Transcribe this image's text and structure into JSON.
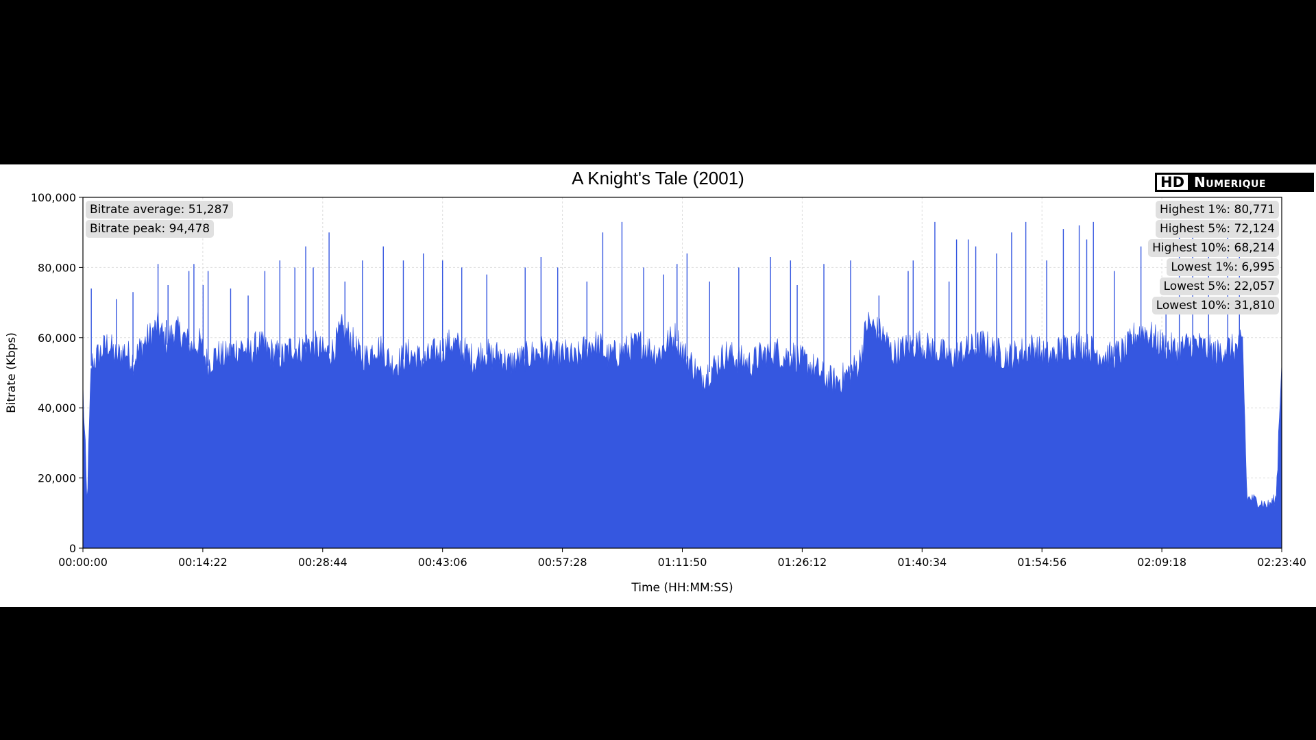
{
  "chart_data": {
    "type": "area",
    "title": "A Knight's Tale (2001)",
    "xlabel": "Time (HH:MM:SS)",
    "ylabel": "Bitrate (Kbps)",
    "ylim": [
      0,
      100000
    ],
    "x_tick_labels": [
      "00:00:00",
      "00:14:22",
      "00:28:44",
      "00:43:06",
      "00:57:28",
      "01:11:50",
      "01:26:12",
      "01:40:34",
      "01:54:56",
      "02:09:18",
      "02:23:40"
    ],
    "y_tick_labels": [
      "0",
      "20,000",
      "40,000",
      "60,000",
      "80,000",
      "100,000"
    ],
    "grid": true,
    "series_color": "#3557e0",
    "x_minutes": [
      0,
      0.5,
      1,
      2,
      3,
      4,
      5,
      6,
      7,
      8,
      9,
      10,
      11,
      12,
      13,
      14,
      15,
      16,
      17,
      18,
      19,
      20,
      21,
      22,
      23,
      24,
      25,
      26,
      27,
      28,
      29,
      30,
      31,
      32,
      33,
      34,
      35,
      36,
      37,
      38,
      39,
      40,
      41,
      42,
      43,
      44,
      45,
      46,
      47,
      48,
      49,
      50,
      51,
      52,
      53,
      54,
      55,
      56,
      57,
      58,
      59,
      60,
      61,
      62,
      63,
      64,
      65,
      66,
      67,
      68,
      69,
      70,
      71,
      72,
      73,
      74,
      75,
      76,
      77,
      78,
      79,
      80,
      81,
      82,
      83,
      84,
      85,
      86,
      87,
      88,
      89,
      90,
      91,
      92,
      93,
      94,
      95,
      96,
      97,
      98,
      99,
      100,
      101,
      102,
      103,
      104,
      105,
      106,
      107,
      108,
      109,
      110,
      111,
      112,
      113,
      114,
      115,
      116,
      117,
      118,
      119,
      120,
      121,
      122,
      123,
      124,
      125,
      126,
      127,
      128,
      129,
      130,
      131,
      132,
      133,
      134,
      135,
      136,
      137,
      138,
      139,
      139.5,
      140,
      141,
      142,
      143,
      143.67
    ],
    "bitrate_kbps": [
      45000,
      12000,
      52000,
      55000,
      58000,
      54000,
      56000,
      53000,
      57000,
      60000,
      63000,
      58000,
      62000,
      60000,
      57000,
      58000,
      52000,
      55000,
      54000,
      56000,
      57000,
      55000,
      58000,
      56000,
      55000,
      54000,
      57000,
      56000,
      58000,
      57000,
      55000,
      56000,
      62000,
      60000,
      55000,
      54000,
      57000,
      56000,
      52000,
      53000,
      55000,
      54000,
      53000,
      55000,
      56000,
      58000,
      57000,
      55000,
      53000,
      56000,
      54000,
      55000,
      52000,
      53000,
      54000,
      55000,
      56000,
      55000,
      54000,
      55000,
      53000,
      56000,
      58000,
      57000,
      54000,
      55000,
      56000,
      57000,
      58000,
      56000,
      55000,
      58000,
      60000,
      55000,
      52000,
      48000,
      50000,
      52000,
      55000,
      54000,
      53000,
      52000,
      54000,
      55000,
      56000,
      54000,
      55000,
      53000,
      52000,
      50000,
      48000,
      47000,
      48000,
      50000,
      52000,
      64000,
      62000,
      60000,
      55000,
      56000,
      57000,
      58000,
      57000,
      56000,
      55000,
      54000,
      55000,
      56000,
      57000,
      58000,
      56000,
      55000,
      54000,
      55000,
      56000,
      57000,
      55000,
      54000,
      56000,
      57000,
      58000,
      57000,
      56000,
      55000,
      54000,
      55000,
      56000,
      60000,
      62000,
      60000,
      58000,
      57000,
      56000,
      57000,
      58000,
      57000,
      56000,
      55000,
      57000,
      56000,
      58000,
      14000,
      14000,
      13000,
      12000,
      14000,
      55000
    ],
    "spike_minutes": [
      1,
      4,
      6,
      9,
      10,
      10.2,
      12.7,
      13.3,
      14.4,
      15,
      17.7,
      19.8,
      21.8,
      23.6,
      25.4,
      26.7,
      27.6,
      29.5,
      31.4,
      33.5,
      36,
      38.4,
      40.8,
      43.1,
      45.4,
      48.4,
      53,
      54.9,
      56.9,
      60.4,
      62.3,
      64.6,
      67.2,
      69.6,
      71.2,
      72.4,
      75.1,
      78.6,
      82.4,
      84.8,
      85.6,
      88.8,
      92,
      95.4,
      98.9,
      99.5,
      102.1,
      103.8,
      104.7,
      106.1,
      107,
      109.5,
      111.3,
      113,
      115.5,
      117.5,
      119.4,
      120.3,
      121.1,
      123.6,
      126.8,
      129.8,
      131.4,
      133,
      134.9,
      137.2,
      138.6
    ],
    "spike_kbps": [
      74000,
      71000,
      73000,
      81000,
      65000,
      75000,
      79000,
      81000,
      75000,
      79000,
      74000,
      72000,
      79000,
      82000,
      80000,
      86000,
      80000,
      90000,
      76000,
      82000,
      86000,
      82000,
      84000,
      82000,
      80000,
      78000,
      80000,
      83000,
      80000,
      76000,
      90000,
      93000,
      80000,
      78000,
      81000,
      84000,
      76000,
      80000,
      83000,
      82000,
      75000,
      81000,
      82000,
      72000,
      79000,
      82000,
      93000,
      76000,
      88000,
      88000,
      86000,
      84000,
      90000,
      93000,
      82000,
      91000,
      92000,
      88000,
      93000,
      79000,
      86000,
      70000,
      91000,
      90000,
      88000,
      90000,
      84000
    ],
    "stats_left": [
      "Bitrate average: 51,287",
      "Bitrate peak: 94,478"
    ],
    "stats_right": [
      "Highest 1%: 80,771",
      "Highest 5%: 72,124",
      "Highest 10%: 68,214",
      "Lowest 1%: 6,995",
      "Lowest 5%: 22,057",
      "Lowest 10%: 31,810"
    ]
  },
  "logo": {
    "hd": "HD",
    "name": "Numerique"
  }
}
